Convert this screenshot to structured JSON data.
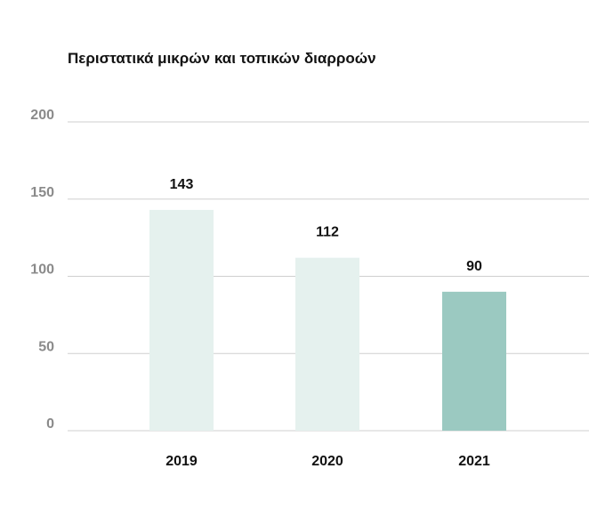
{
  "chart_data": {
    "type": "bar",
    "title": "Περιστατικά μικρών και τοπικών διαρροών",
    "categories": [
      "2019",
      "2020",
      "2021"
    ],
    "values": [
      143,
      112,
      90
    ],
    "data_labels": [
      "143",
      "112",
      "90"
    ],
    "ylim": [
      0,
      200
    ],
    "yticks": [
      0,
      50,
      100,
      150,
      200
    ],
    "ytick_labels": [
      "0",
      "50",
      "100",
      "150",
      "200"
    ],
    "grid": true,
    "xlabel": "",
    "ylabel": "",
    "bar_colors": [
      "#e5f1ee",
      "#e5f1ee",
      "#9bc9c1"
    ],
    "grid_color": "#cfcfcf"
  }
}
